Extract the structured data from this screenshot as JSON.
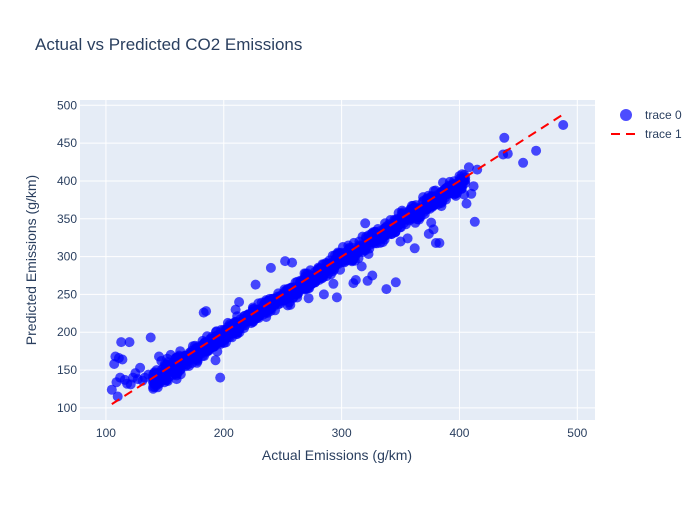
{
  "chart_data": {
    "type": "scatter",
    "title": "Actual vs Predicted CO2 Emissions",
    "xlabel": "Actual Emissions (g/km)",
    "ylabel": "Predicted Emissions (g/km)",
    "xlim": [
      78,
      515
    ],
    "ylim": [
      84,
      507
    ],
    "x_ticks": [
      100,
      200,
      300,
      400,
      500
    ],
    "y_ticks": [
      100,
      150,
      200,
      250,
      300,
      350,
      400,
      450,
      500
    ],
    "grid": true,
    "legend": "top-right",
    "colors": {
      "trace_0": "#0000ff",
      "trace_1": "#ff0000",
      "plot_bg": "#e5ecf6",
      "grid": "#ffffff",
      "text": "#2a3f5f"
    },
    "series": [
      {
        "name": "trace 0",
        "mode": "markers",
        "main_band_samples": 950,
        "main_band_range": [
          140,
          405
        ],
        "points": [
          [
            105,
            124
          ],
          [
            107,
            158
          ],
          [
            108,
            168
          ],
          [
            109,
            134
          ],
          [
            110,
            115
          ],
          [
            111,
            166
          ],
          [
            112,
            140
          ],
          [
            113,
            187
          ],
          [
            114,
            164
          ],
          [
            116,
            137
          ],
          [
            118,
            132
          ],
          [
            120,
            187
          ],
          [
            121,
            131
          ],
          [
            123,
            140
          ],
          [
            125,
            146
          ],
          [
            127,
            138
          ],
          [
            129,
            153
          ],
          [
            131,
            136
          ],
          [
            133,
            140
          ],
          [
            136,
            144
          ],
          [
            138,
            193
          ],
          [
            140,
            144
          ],
          [
            143,
            150
          ],
          [
            145,
            168
          ],
          [
            147,
            162
          ],
          [
            150,
            158
          ],
          [
            152,
            165
          ],
          [
            155,
            170
          ],
          [
            157,
            160
          ],
          [
            160,
            138
          ],
          [
            163,
            175
          ],
          [
            175,
            167
          ],
          [
            182,
            174
          ],
          [
            183,
            226
          ],
          [
            185,
            228
          ],
          [
            193,
            163
          ],
          [
            197,
            140
          ],
          [
            210,
            230
          ],
          [
            213,
            240
          ],
          [
            227,
            263
          ],
          [
            240,
            285
          ],
          [
            252,
            294
          ],
          [
            258,
            292
          ],
          [
            272,
            245
          ],
          [
            285,
            250
          ],
          [
            293,
            264
          ],
          [
            296,
            246
          ],
          [
            300,
            305
          ],
          [
            305,
            295
          ],
          [
            310,
            265
          ],
          [
            312,
            269
          ],
          [
            315,
            320
          ],
          [
            317,
            287
          ],
          [
            320,
            344
          ],
          [
            322,
            268
          ],
          [
            326,
            275
          ],
          [
            338,
            257
          ],
          [
            346,
            266
          ],
          [
            350,
            320
          ],
          [
            356,
            324
          ],
          [
            362,
            311
          ],
          [
            374,
            330
          ],
          [
            376,
            345
          ],
          [
            378,
            336
          ],
          [
            380,
            318
          ],
          [
            383,
            318
          ],
          [
            386,
            398
          ],
          [
            389,
            391
          ],
          [
            393,
            386
          ],
          [
            396,
            387
          ],
          [
            398,
            384
          ],
          [
            401,
            401
          ],
          [
            402,
            390
          ],
          [
            404,
            382
          ],
          [
            406,
            370
          ],
          [
            408,
            418
          ],
          [
            410,
            383
          ],
          [
            412,
            393
          ],
          [
            413,
            346
          ],
          [
            415,
            415
          ],
          [
            437,
            435
          ],
          [
            438,
            457
          ],
          [
            441,
            436
          ],
          [
            454,
            424
          ],
          [
            465,
            440
          ],
          [
            488,
            474
          ]
        ]
      },
      {
        "name": "trace 1",
        "mode": "lines",
        "x": [
          105,
          488
        ],
        "y": [
          105,
          488
        ]
      }
    ]
  }
}
